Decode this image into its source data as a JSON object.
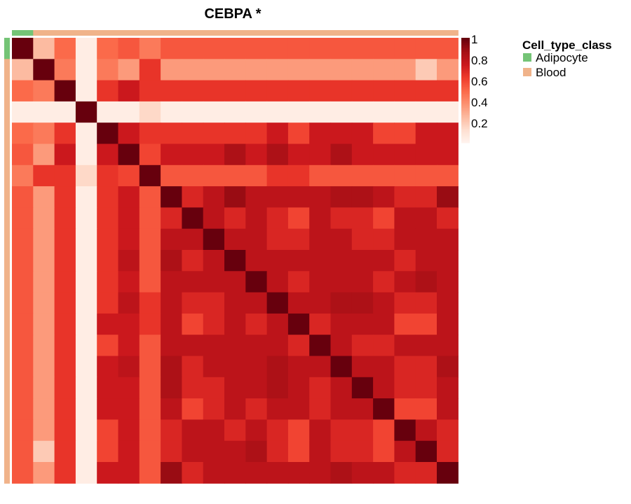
{
  "chart_data": {
    "type": "heatmap",
    "title": "CEBPA *",
    "color_scale": {
      "colors": [
        "#fff5f0",
        "#fee0d2",
        "#fcbba1",
        "#fc9272",
        "#fb6a4a",
        "#ef3b2c",
        "#cb181d",
        "#a50f15",
        "#67000d"
      ],
      "ticks": [
        1,
        0.8,
        0.6,
        0.4,
        0.2
      ],
      "tick_labels": [
        "1",
        "0.8",
        "0.6",
        "0.4",
        "0.2"
      ]
    },
    "annotation": {
      "name": "Cell_type_class",
      "categories": [
        {
          "label": "Adipocyte",
          "color": "#74c476"
        },
        {
          "label": "Blood",
          "color": "#f0b38a"
        }
      ],
      "row_classes": [
        "Adipocyte",
        "Blood",
        "Blood",
        "Blood",
        "Blood",
        "Blood",
        "Blood",
        "Blood",
        "Blood",
        "Blood",
        "Blood",
        "Blood",
        "Blood",
        "Blood",
        "Blood",
        "Blood",
        "Blood",
        "Blood",
        "Blood",
        "Blood",
        "Blood"
      ]
    },
    "matrix": [
      [
        1.0,
        0.25,
        0.5,
        0.05,
        0.5,
        0.55,
        0.45,
        0.55,
        0.55,
        0.55,
        0.55,
        0.55,
        0.55,
        0.55,
        0.55,
        0.55,
        0.55,
        0.55,
        0.55,
        0.55,
        0.55
      ],
      [
        0.25,
        1.0,
        0.45,
        0.05,
        0.45,
        0.35,
        0.65,
        0.35,
        0.35,
        0.35,
        0.35,
        0.35,
        0.35,
        0.35,
        0.35,
        0.35,
        0.35,
        0.35,
        0.35,
        0.2,
        0.35
      ],
      [
        0.5,
        0.45,
        1.0,
        0.05,
        0.65,
        0.75,
        0.65,
        0.65,
        0.65,
        0.65,
        0.65,
        0.65,
        0.65,
        0.65,
        0.65,
        0.65,
        0.65,
        0.65,
        0.65,
        0.65,
        0.65
      ],
      [
        0.05,
        0.05,
        0.05,
        1.0,
        0.05,
        0.05,
        0.15,
        0.05,
        0.05,
        0.05,
        0.05,
        0.05,
        0.05,
        0.05,
        0.05,
        0.05,
        0.05,
        0.05,
        0.05,
        0.05,
        0.05
      ],
      [
        0.5,
        0.45,
        0.65,
        0.05,
        1.0,
        0.75,
        0.65,
        0.65,
        0.65,
        0.65,
        0.65,
        0.65,
        0.75,
        0.6,
        0.75,
        0.75,
        0.75,
        0.6,
        0.6,
        0.75,
        0.75
      ],
      [
        0.55,
        0.35,
        0.75,
        0.05,
        0.75,
        1.0,
        0.6,
        0.75,
        0.75,
        0.75,
        0.85,
        0.75,
        0.85,
        0.75,
        0.75,
        0.85,
        0.75,
        0.75,
        0.75,
        0.75,
        0.75
      ],
      [
        0.45,
        0.65,
        0.65,
        0.15,
        0.65,
        0.6,
        1.0,
        0.55,
        0.55,
        0.55,
        0.55,
        0.55,
        0.65,
        0.65,
        0.55,
        0.55,
        0.55,
        0.55,
        0.55,
        0.55,
        0.55
      ],
      [
        0.55,
        0.35,
        0.65,
        0.05,
        0.65,
        0.75,
        0.55,
        1.0,
        0.7,
        0.8,
        0.9,
        0.8,
        0.8,
        0.8,
        0.8,
        0.85,
        0.85,
        0.8,
        0.7,
        0.7,
        0.9
      ],
      [
        0.55,
        0.35,
        0.65,
        0.05,
        0.65,
        0.75,
        0.55,
        0.7,
        1.0,
        0.8,
        0.7,
        0.8,
        0.7,
        0.6,
        0.8,
        0.7,
        0.7,
        0.6,
        0.8,
        0.8,
        0.7
      ],
      [
        0.55,
        0.35,
        0.65,
        0.05,
        0.65,
        0.75,
        0.55,
        0.8,
        0.8,
        1.0,
        0.8,
        0.8,
        0.7,
        0.7,
        0.8,
        0.8,
        0.7,
        0.7,
        0.8,
        0.8,
        0.8
      ],
      [
        0.55,
        0.35,
        0.65,
        0.05,
        0.65,
        0.8,
        0.55,
        0.85,
        0.7,
        0.8,
        1.0,
        0.8,
        0.8,
        0.8,
        0.8,
        0.8,
        0.8,
        0.8,
        0.7,
        0.8,
        0.8
      ],
      [
        0.55,
        0.35,
        0.65,
        0.05,
        0.65,
        0.75,
        0.55,
        0.8,
        0.8,
        0.8,
        0.8,
        1.0,
        0.8,
        0.7,
        0.8,
        0.8,
        0.8,
        0.7,
        0.8,
        0.85,
        0.8
      ],
      [
        0.55,
        0.35,
        0.65,
        0.05,
        0.65,
        0.8,
        0.65,
        0.8,
        0.7,
        0.7,
        0.8,
        0.8,
        1.0,
        0.8,
        0.8,
        0.85,
        0.85,
        0.8,
        0.7,
        0.7,
        0.8
      ],
      [
        0.55,
        0.35,
        0.65,
        0.05,
        0.75,
        0.75,
        0.65,
        0.8,
        0.6,
        0.7,
        0.8,
        0.7,
        0.8,
        1.0,
        0.7,
        0.8,
        0.8,
        0.8,
        0.6,
        0.6,
        0.8
      ],
      [
        0.55,
        0.35,
        0.65,
        0.05,
        0.6,
        0.75,
        0.55,
        0.8,
        0.8,
        0.8,
        0.8,
        0.8,
        0.8,
        0.7,
        1.0,
        0.8,
        0.7,
        0.7,
        0.8,
        0.8,
        0.8
      ],
      [
        0.55,
        0.35,
        0.65,
        0.05,
        0.75,
        0.8,
        0.55,
        0.85,
        0.7,
        0.8,
        0.8,
        0.8,
        0.85,
        0.8,
        0.8,
        1.0,
        0.8,
        0.8,
        0.7,
        0.7,
        0.85
      ],
      [
        0.55,
        0.35,
        0.65,
        0.05,
        0.75,
        0.75,
        0.55,
        0.85,
        0.7,
        0.7,
        0.8,
        0.8,
        0.85,
        0.8,
        0.7,
        0.8,
        1.0,
        0.8,
        0.7,
        0.7,
        0.8
      ],
      [
        0.55,
        0.35,
        0.65,
        0.05,
        0.75,
        0.75,
        0.55,
        0.8,
        0.6,
        0.7,
        0.8,
        0.7,
        0.8,
        0.8,
        0.7,
        0.8,
        0.8,
        1.0,
        0.6,
        0.6,
        0.8
      ],
      [
        0.55,
        0.35,
        0.65,
        0.05,
        0.6,
        0.75,
        0.55,
        0.7,
        0.8,
        0.8,
        0.7,
        0.8,
        0.7,
        0.6,
        0.8,
        0.7,
        0.7,
        0.6,
        1.0,
        0.8,
        0.7
      ],
      [
        0.55,
        0.2,
        0.65,
        0.05,
        0.6,
        0.75,
        0.55,
        0.7,
        0.8,
        0.8,
        0.8,
        0.85,
        0.7,
        0.6,
        0.8,
        0.7,
        0.7,
        0.6,
        0.8,
        1.0,
        0.7
      ],
      [
        0.55,
        0.35,
        0.65,
        0.05,
        0.75,
        0.75,
        0.55,
        0.9,
        0.7,
        0.8,
        0.8,
        0.8,
        0.8,
        0.8,
        0.8,
        0.85,
        0.8,
        0.8,
        0.7,
        0.7,
        1.0
      ]
    ]
  }
}
